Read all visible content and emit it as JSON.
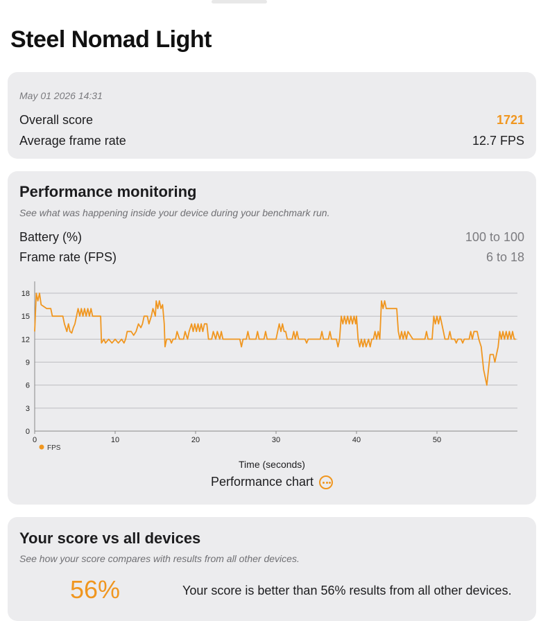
{
  "page": {
    "title": "Steel Nomad Light"
  },
  "summary": {
    "date": "May 01 2026 14:31",
    "overall_score_label": "Overall score",
    "overall_score_value": "1721",
    "avg_fps_label": "Average frame rate",
    "avg_fps_value": "12.7 FPS"
  },
  "performance": {
    "title": "Performance monitoring",
    "subtitle": "See what was happening inside your device during your benchmark run.",
    "battery_label": "Battery (%)",
    "battery_value": "100 to 100",
    "framerate_label": "Frame rate (FPS)",
    "framerate_value": "6 to 18",
    "chart_link_label": "Performance chart",
    "chart_link_icon": "more-circle-icon"
  },
  "chart_data": {
    "type": "line",
    "xlabel": "Time (seconds)",
    "ylabel": "",
    "xlim": [
      0,
      60
    ],
    "ylim": [
      0,
      19
    ],
    "xticks": [
      0,
      10,
      20,
      30,
      40,
      50
    ],
    "yticks": [
      0,
      3,
      6,
      9,
      12,
      15,
      18
    ],
    "grid": "horizontal",
    "legend": "bottom-left",
    "series": [
      {
        "name": "FPS",
        "color": "#f0961f",
        "points": [
          [
            0,
            13
          ],
          [
            0.2,
            18
          ],
          [
            0.4,
            17
          ],
          [
            0.6,
            18
          ],
          [
            0.8,
            16.5
          ],
          [
            1.5,
            16
          ],
          [
            2,
            16
          ],
          [
            2.2,
            15
          ],
          [
            3.5,
            15
          ],
          [
            3.7,
            14
          ],
          [
            4,
            13
          ],
          [
            4.2,
            14
          ],
          [
            4.4,
            13
          ],
          [
            4.6,
            12.8
          ],
          [
            4.8,
            13.5
          ],
          [
            5.0,
            14
          ],
          [
            5.2,
            15
          ],
          [
            5.4,
            16
          ],
          [
            5.6,
            15
          ],
          [
            5.8,
            16
          ],
          [
            6,
            15
          ],
          [
            6.2,
            16
          ],
          [
            6.4,
            15
          ],
          [
            6.6,
            16
          ],
          [
            6.8,
            15
          ],
          [
            7,
            16
          ],
          [
            7.2,
            15
          ],
          [
            8.2,
            15
          ],
          [
            8.3,
            11.5
          ],
          [
            8.6,
            12
          ],
          [
            8.8,
            11.5
          ],
          [
            9.2,
            12
          ],
          [
            9.6,
            11.5
          ],
          [
            10,
            12
          ],
          [
            10.4,
            11.5
          ],
          [
            10.8,
            12
          ],
          [
            11.1,
            11.5
          ],
          [
            11.3,
            12
          ],
          [
            11.5,
            13
          ],
          [
            12,
            13
          ],
          [
            12.3,
            12.5
          ],
          [
            12.6,
            13
          ],
          [
            12.9,
            14
          ],
          [
            13.2,
            13.5
          ],
          [
            13.4,
            14
          ],
          [
            13.6,
            15
          ],
          [
            14,
            15
          ],
          [
            14.2,
            14
          ],
          [
            14.5,
            15
          ],
          [
            14.7,
            16
          ],
          [
            15,
            15
          ],
          [
            15.1,
            17
          ],
          [
            15.3,
            16
          ],
          [
            15.5,
            17
          ],
          [
            15.7,
            16
          ],
          [
            15.9,
            16.5
          ],
          [
            16.1,
            14
          ],
          [
            16.2,
            11
          ],
          [
            16.4,
            12
          ],
          [
            16.8,
            12
          ],
          [
            17,
            11.5
          ],
          [
            17.2,
            12
          ],
          [
            17.5,
            12
          ],
          [
            17.7,
            13
          ],
          [
            18,
            12
          ],
          [
            18.5,
            12
          ],
          [
            18.7,
            13
          ],
          [
            19,
            12
          ],
          [
            19.2,
            13
          ],
          [
            19.5,
            14
          ],
          [
            19.7,
            13
          ],
          [
            19.9,
            14
          ],
          [
            20.1,
            13
          ],
          [
            20.3,
            14
          ],
          [
            20.5,
            13
          ],
          [
            20.7,
            14
          ],
          [
            20.9,
            13
          ],
          [
            21.1,
            14
          ],
          [
            21.4,
            14
          ],
          [
            21.6,
            12
          ],
          [
            22,
            12
          ],
          [
            22.2,
            13
          ],
          [
            22.5,
            12
          ],
          [
            22.7,
            13
          ],
          [
            23,
            12
          ],
          [
            23.2,
            13
          ],
          [
            23.4,
            12
          ],
          [
            25.5,
            12
          ],
          [
            25.7,
            11
          ],
          [
            25.9,
            12
          ],
          [
            26.3,
            12
          ],
          [
            26.5,
            13
          ],
          [
            26.7,
            12
          ],
          [
            27.5,
            12
          ],
          [
            27.7,
            13
          ],
          [
            27.9,
            12
          ],
          [
            28.5,
            12
          ],
          [
            28.7,
            13
          ],
          [
            28.9,
            12
          ],
          [
            30,
            12
          ],
          [
            30.2,
            13
          ],
          [
            30.4,
            14
          ],
          [
            30.6,
            13
          ],
          [
            30.8,
            14
          ],
          [
            31,
            13
          ],
          [
            31.2,
            13
          ],
          [
            31.4,
            12
          ],
          [
            32,
            12
          ],
          [
            32.2,
            13
          ],
          [
            32.4,
            12
          ],
          [
            32.6,
            13
          ],
          [
            32.8,
            12
          ],
          [
            33.6,
            12
          ],
          [
            33.8,
            11.5
          ],
          [
            34,
            12
          ],
          [
            35.5,
            12
          ],
          [
            35.7,
            13
          ],
          [
            35.9,
            12
          ],
          [
            36.5,
            12
          ],
          [
            36.7,
            13
          ],
          [
            36.9,
            12
          ],
          [
            37.5,
            12
          ],
          [
            37.7,
            11
          ],
          [
            37.9,
            12
          ],
          [
            38.1,
            15
          ],
          [
            38.3,
            14
          ],
          [
            38.5,
            15
          ],
          [
            38.7,
            14
          ],
          [
            38.9,
            15
          ],
          [
            39.1,
            14
          ],
          [
            39.3,
            15
          ],
          [
            39.5,
            14
          ],
          [
            39.7,
            15
          ],
          [
            39.9,
            14
          ],
          [
            40,
            15
          ],
          [
            40.2,
            12
          ],
          [
            40.4,
            11
          ],
          [
            40.6,
            12
          ],
          [
            40.8,
            11
          ],
          [
            41,
            12
          ],
          [
            41.2,
            11
          ],
          [
            41.5,
            12
          ],
          [
            41.7,
            11
          ],
          [
            41.9,
            12
          ],
          [
            42.1,
            12
          ],
          [
            42.3,
            13
          ],
          [
            42.5,
            12
          ],
          [
            42.7,
            13
          ],
          [
            42.9,
            12
          ],
          [
            43.1,
            17
          ],
          [
            43.3,
            16
          ],
          [
            43.5,
            17
          ],
          [
            43.7,
            16
          ],
          [
            45,
            16
          ],
          [
            45.2,
            13
          ],
          [
            45.4,
            12
          ],
          [
            45.6,
            13
          ],
          [
            45.8,
            12
          ],
          [
            46,
            13
          ],
          [
            46.2,
            12
          ],
          [
            46.4,
            13
          ],
          [
            47,
            12
          ],
          [
            48.5,
            12
          ],
          [
            48.7,
            13
          ],
          [
            48.9,
            12
          ],
          [
            49.4,
            12
          ],
          [
            49.6,
            15
          ],
          [
            49.8,
            14
          ],
          [
            50,
            15
          ],
          [
            50.2,
            14
          ],
          [
            50.4,
            15
          ],
          [
            50.6,
            14
          ],
          [
            50.8,
            13
          ],
          [
            51,
            12
          ],
          [
            51.4,
            12
          ],
          [
            51.6,
            13
          ],
          [
            51.8,
            12
          ],
          [
            52.2,
            12
          ],
          [
            52.4,
            11.5
          ],
          [
            52.6,
            12
          ],
          [
            53,
            12
          ],
          [
            53.2,
            11.5
          ],
          [
            53.4,
            12
          ],
          [
            54,
            12
          ],
          [
            54.2,
            13
          ],
          [
            54.4,
            12
          ],
          [
            54.6,
            13
          ],
          [
            55,
            13
          ],
          [
            55.2,
            12
          ],
          [
            55.5,
            11
          ],
          [
            55.8,
            8
          ],
          [
            56,
            7
          ],
          [
            56.2,
            6
          ],
          [
            56.4,
            8
          ],
          [
            56.6,
            10
          ],
          [
            57,
            10
          ],
          [
            57.2,
            9
          ],
          [
            57.4,
            10
          ],
          [
            57.6,
            11
          ],
          [
            57.8,
            13
          ],
          [
            58,
            12
          ],
          [
            58.2,
            13
          ],
          [
            58.4,
            12
          ],
          [
            58.6,
            13
          ],
          [
            58.8,
            12
          ],
          [
            59,
            13
          ],
          [
            59.2,
            12
          ],
          [
            59.4,
            13
          ],
          [
            59.6,
            12
          ],
          [
            59.8,
            12
          ]
        ]
      }
    ]
  },
  "comparison": {
    "title": "Your score vs all devices",
    "subtitle": "See how your score compares with results from all other devices.",
    "percentile": "56%",
    "statement": "Your score is better than 56% results from all other devices."
  }
}
